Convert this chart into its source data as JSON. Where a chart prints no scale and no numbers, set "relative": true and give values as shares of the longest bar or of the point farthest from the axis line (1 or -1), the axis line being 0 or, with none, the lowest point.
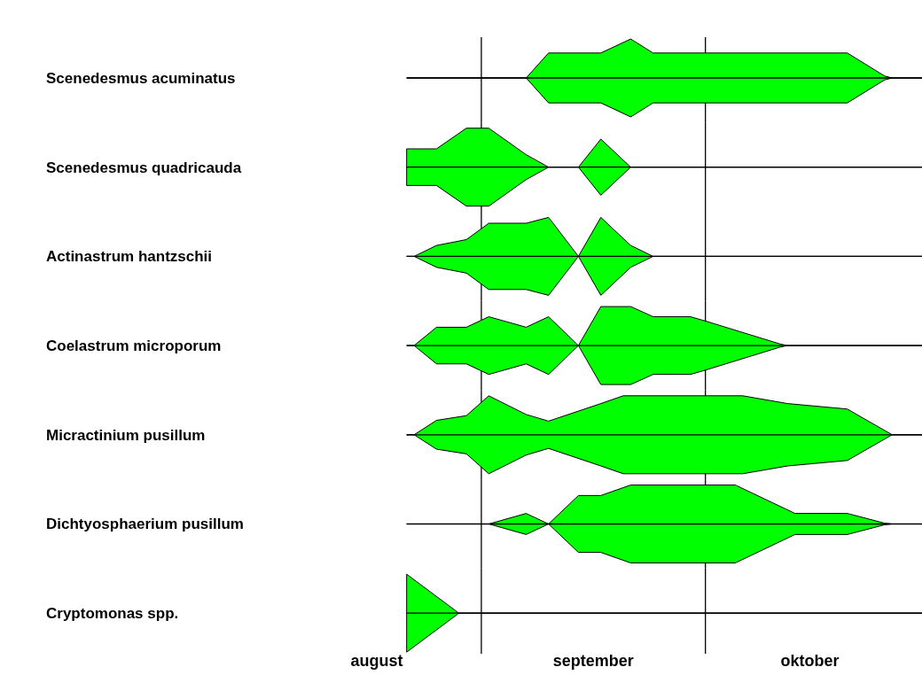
{
  "chart_data": [
    {
      "type": "area",
      "relative": true,
      "ylabel": "Scenedesmus acuminatus",
      "xlim": [
        "--08-18",
        "--10-30"
      ],
      "tick_labels": false,
      "ref_lines": [
        {
          "axis": "x",
          "value": "--09-01"
        },
        {
          "axis": "x",
          "value": "--10-01"
        }
      ],
      "series": [
        {
          "color": "#00ff00",
          "x": [
            "--08-22",
            "--09-07",
            "--09-10",
            "--09-17",
            "--09-21",
            "--09-24",
            "--10-20",
            "--10-25",
            "--10-26",
            "--10-30"
          ],
          "values": [
            0,
            0,
            0.64,
            0.64,
            1,
            0.64,
            0.64,
            0.05,
            0,
            0
          ]
        }
      ]
    },
    {
      "type": "area",
      "relative": true,
      "ylabel": "Scenedesmus quadricauda",
      "xlim": [
        "--08-18",
        "--10-30"
      ],
      "tick_labels": false,
      "ref_lines": [
        {
          "axis": "x",
          "value": "--09-01"
        },
        {
          "axis": "x",
          "value": "--10-01"
        }
      ],
      "series": [
        {
          "color": "#00ff00",
          "x": [
            "--08-22",
            "--08-26",
            "--08-30",
            "--09-02",
            "--09-07",
            "--09-10",
            "--09-14",
            "--09-17",
            "--09-21",
            "--10-30"
          ],
          "values": [
            0.47,
            0.47,
            1,
            1,
            0.32,
            0,
            0,
            0.72,
            0,
            0
          ]
        }
      ]
    },
    {
      "type": "area",
      "relative": true,
      "ylabel": "Actinastrum hantzschii",
      "xlim": [
        "--08-18",
        "--10-30"
      ],
      "tick_labels": false,
      "ref_lines": [
        {
          "axis": "x",
          "value": "--09-01"
        },
        {
          "axis": "x",
          "value": "--10-01"
        }
      ],
      "series": [
        {
          "color": "#00ff00",
          "x": [
            "--08-22",
            "--08-23",
            "--08-26",
            "--08-30",
            "--09-02",
            "--09-07",
            "--09-10",
            "--09-14",
            "--09-17",
            "--09-21",
            "--09-24",
            "--10-30"
          ],
          "values": [
            0,
            0,
            0.28,
            0.43,
            0.85,
            0.85,
            1,
            0,
            1,
            0.28,
            0,
            0
          ]
        }
      ]
    },
    {
      "type": "area",
      "relative": true,
      "ylabel": "Coelastrum microporum",
      "xlim": [
        "--08-18",
        "--10-30"
      ],
      "tick_labels": false,
      "ref_lines": [
        {
          "axis": "x",
          "value": "--09-01"
        },
        {
          "axis": "x",
          "value": "--10-01"
        }
      ],
      "series": [
        {
          "color": "#00ff00",
          "x": [
            "--08-22",
            "--08-23",
            "--08-26",
            "--08-30",
            "--09-02",
            "--09-07",
            "--09-10",
            "--09-14",
            "--09-17",
            "--09-21",
            "--09-24",
            "--09-29",
            "--10-01",
            "--10-11",
            "--10-12",
            "--10-30"
          ],
          "values": [
            0,
            0,
            0.47,
            0.47,
            0.74,
            0.47,
            0.74,
            0,
            1,
            1,
            0.74,
            0.74,
            0.63,
            0.04,
            0,
            0
          ]
        }
      ]
    },
    {
      "type": "area",
      "relative": true,
      "ylabel": "Micractinium pusillum",
      "xlim": [
        "--08-18",
        "--10-30"
      ],
      "tick_labels": false,
      "ref_lines": [
        {
          "axis": "x",
          "value": "--09-01"
        },
        {
          "axis": "x",
          "value": "--10-01"
        }
      ],
      "series": [
        {
          "color": "#00ff00",
          "x": [
            "--08-22",
            "--08-23",
            "--08-26",
            "--08-30",
            "--09-02",
            "--09-07",
            "--09-10",
            "--09-17",
            "--09-20",
            "--10-06",
            "--10-12",
            "--10-20",
            "--10-26",
            "--10-30"
          ],
          "values": [
            0,
            0,
            0.37,
            0.49,
            1,
            0.52,
            0.35,
            0.8,
            1,
            1,
            0.8,
            0.66,
            0,
            0
          ]
        }
      ]
    },
    {
      "type": "area",
      "relative": true,
      "ylabel": "Dichtyosphaerium pusillum",
      "xlim": [
        "--08-18",
        "--10-30"
      ],
      "tick_labels": false,
      "ref_lines": [
        {
          "axis": "x",
          "value": "--09-01"
        },
        {
          "axis": "x",
          "value": "--10-01"
        }
      ],
      "series": [
        {
          "color": "#00ff00",
          "x": [
            "--08-22",
            "--09-02",
            "--09-07",
            "--09-10",
            "--09-14",
            "--09-17",
            "--09-21",
            "--10-05",
            "--10-13",
            "--10-20",
            "--10-25",
            "--10-26",
            "--10-30"
          ],
          "values": [
            0,
            0,
            0.27,
            0,
            0.73,
            0.73,
            1,
            1,
            0.27,
            0.27,
            0.02,
            0,
            0
          ]
        }
      ]
    },
    {
      "type": "area",
      "relative": true,
      "ylabel": "Cryptomonas spp.",
      "xlim": [
        "--08-18",
        "--10-30"
      ],
      "tick_labels": "x",
      "xticks": [
        {
          "value": "--08-18",
          "label": "august"
        },
        {
          "value": "--09-16",
          "label": "september"
        },
        {
          "value": "--10-15",
          "label": "oktober"
        }
      ],
      "ref_lines": [
        {
          "axis": "x",
          "value": "--09-01"
        },
        {
          "axis": "x",
          "value": "--10-01"
        }
      ],
      "series": [
        {
          "color": "#00ff00",
          "x": [
            "--08-22",
            "--08-29",
            "--10-30"
          ],
          "values": [
            1,
            0,
            0
          ]
        }
      ]
    }
  ]
}
